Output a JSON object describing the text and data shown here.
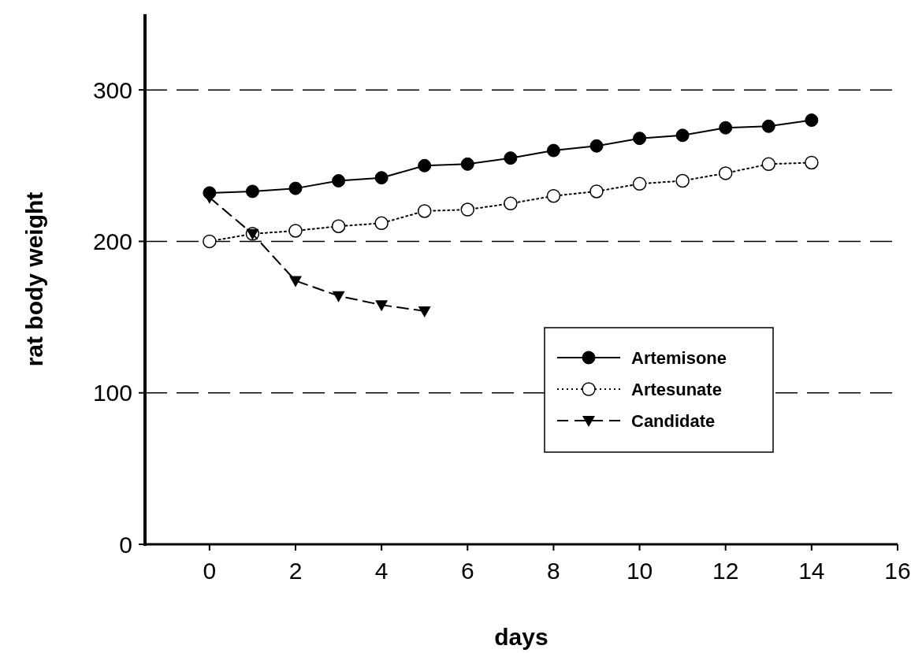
{
  "chart_data": {
    "type": "line",
    "xlabel": "days",
    "ylabel": "rat body weight",
    "xlim": [
      -1.5,
      16
    ],
    "xticks": [
      0,
      2,
      4,
      6,
      8,
      10,
      12,
      14,
      16
    ],
    "ylim": [
      0,
      350
    ],
    "yticks": [
      0,
      100,
      200,
      300
    ],
    "grid": "y",
    "legend": "right",
    "series": [
      {
        "name": "Artemisone",
        "color": "#000000",
        "marker": "circle",
        "line_style": "solid",
        "x": [
          0,
          1,
          2,
          3,
          4,
          5,
          6,
          7,
          8,
          9,
          10,
          11,
          12,
          13,
          14
        ],
        "values": [
          232,
          233,
          235,
          240,
          242,
          250,
          251,
          255,
          260,
          263,
          268,
          270,
          275,
          276,
          280
        ]
      },
      {
        "name": "Artesunate",
        "color": "#000000",
        "marker": "circle-open",
        "line_style": "dotted",
        "x": [
          0,
          1,
          2,
          3,
          4,
          5,
          6,
          7,
          8,
          9,
          10,
          11,
          12,
          13,
          14
        ],
        "values": [
          200,
          205,
          207,
          210,
          212,
          220,
          221,
          225,
          230,
          233,
          238,
          240,
          245,
          251,
          252
        ]
      },
      {
        "name": "Candidate",
        "color": "#000000",
        "marker": "triangle-down",
        "line_style": "dashed",
        "x": [
          0,
          1,
          2,
          3,
          4,
          5
        ],
        "values": [
          229,
          205,
          174,
          164,
          158,
          154
        ]
      }
    ]
  }
}
